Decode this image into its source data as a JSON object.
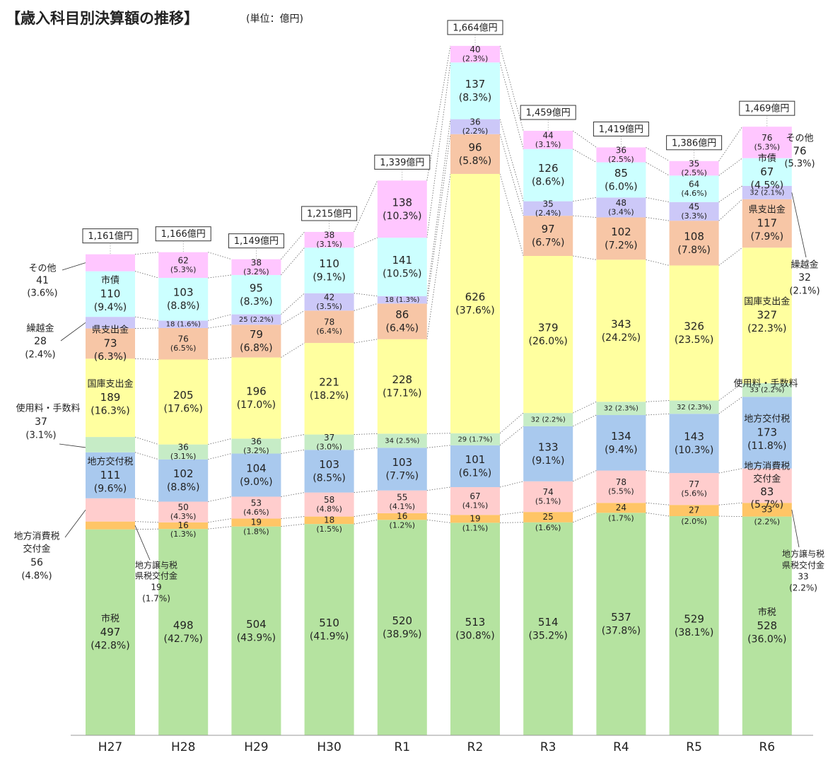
{
  "page": {
    "title": "【歳入科目別決算額の推移】",
    "unit": "(単位：億円)"
  },
  "colors": {
    "市税": "#b5e3a0",
    "地方譲与税": "#ffc566",
    "地方消費税": "#ffcdcd",
    "地方交付税": "#a9c9ee",
    "使用料": "#c6ecc6",
    "国庫支出金": "#ffff9f",
    "県支出金": "#f7c6a6",
    "繰越金": "#ccc8f8",
    "市債": "#ccffff",
    "その他": "#ffc6ff"
  },
  "chart_data": {
    "type": "bar",
    "stacked": true,
    "title": "【歳入科目別決算額の推移】",
    "unit": "(単位：億円)",
    "categories": [
      "H27",
      "H28",
      "H29",
      "H30",
      "R1",
      "R2",
      "R3",
      "R4",
      "R5",
      "R6"
    ],
    "totals": [
      1161,
      1166,
      1149,
      1215,
      1339,
      1664,
      1459,
      1419,
      1386,
      1469
    ],
    "total_labels": [
      "1,161億円",
      "1,166億円",
      "1,149億円",
      "1,215億円",
      "1,339億円",
      "1,664億円",
      "1,459億円",
      "1,419億円",
      "1,386億円",
      "1,469億円"
    ],
    "series": [
      {
        "key": "市税",
        "name": "市税",
        "values": [
          497,
          498,
          504,
          510,
          520,
          513,
          514,
          537,
          529,
          528
        ],
        "pct": [
          "(42.8%)",
          "(42.7%)",
          "(43.9%)",
          "(41.9%)",
          "(38.9%)",
          "(30.8%)",
          "(35.2%)",
          "(37.8%)",
          "(38.1%)",
          "(36.0%)"
        ]
      },
      {
        "key": "地方譲与税",
        "name": "地方譲与税・県税交付金",
        "values": [
          19,
          16,
          19,
          18,
          16,
          19,
          25,
          24,
          27,
          33
        ],
        "pct": [
          "(1.7%)",
          "(1.3%)",
          "(1.8%)",
          "(1.5%)",
          "(1.2%)",
          "(1.1%)",
          "(1.6%)",
          "(1.7%)",
          "(2.0%)",
          "(2.2%)"
        ]
      },
      {
        "key": "地方消費税",
        "name": "地方消費税交付金",
        "values": [
          56,
          50,
          53,
          58,
          55,
          67,
          74,
          78,
          77,
          83
        ],
        "pct": [
          "(4.8%)",
          "(4.3%)",
          "(4.6%)",
          "(4.8%)",
          "(4.1%)",
          "(4.1%)",
          "(5.1%)",
          "(5.5%)",
          "(5.6%)",
          "(5.7%)"
        ]
      },
      {
        "key": "地方交付税",
        "name": "地方交付税",
        "values": [
          111,
          102,
          104,
          103,
          103,
          101,
          133,
          134,
          143,
          173
        ],
        "pct": [
          "(9.6%)",
          "(8.8%)",
          "(9.0%)",
          "(8.5%)",
          "(7.7%)",
          "(6.1%)",
          "(9.1%)",
          "(9.4%)",
          "(10.3%)",
          "(11.8%)"
        ]
      },
      {
        "key": "使用料",
        "name": "使用料・手数料",
        "values": [
          37,
          36,
          36,
          37,
          34,
          29,
          32,
          32,
          32,
          33
        ],
        "pct": [
          "(3.1%)",
          "(3.1%)",
          "(3.2%)",
          "(3.0%)",
          "(2.5%)",
          "(1.7%)",
          "(2.2%)",
          "(2.3%)",
          "(2.3%)",
          "(2.2%)"
        ]
      },
      {
        "key": "国庫支出金",
        "name": "国庫支出金",
        "values": [
          189,
          205,
          196,
          221,
          228,
          626,
          379,
          343,
          326,
          327
        ],
        "pct": [
          "(16.3%)",
          "(17.6%)",
          "(17.0%)",
          "(18.2%)",
          "(17.1%)",
          "(37.6%)",
          "(26.0%)",
          "(24.2%)",
          "(23.5%)",
          "(22.3%)"
        ]
      },
      {
        "key": "県支出金",
        "name": "県支出金",
        "values": [
          73,
          76,
          79,
          78,
          86,
          96,
          97,
          102,
          108,
          117
        ],
        "pct": [
          "(6.3%)",
          "(6.5%)",
          "(6.8%)",
          "(6.4%)",
          "(6.4%)",
          "(5.8%)",
          "(6.7%)",
          "(7.2%)",
          "(7.8%)",
          "(7.9%)"
        ]
      },
      {
        "key": "繰越金",
        "name": "繰越金",
        "values": [
          28,
          18,
          25,
          42,
          18,
          36,
          35,
          48,
          45,
          32
        ],
        "pct": [
          "(2.4%)",
          "(1.6%)",
          "(2.2%)",
          "(3.5%)",
          "(1.3%)",
          "(2.2%)",
          "(2.4%)",
          "(3.4%)",
          "(3.3%)",
          "(2.1%)"
        ]
      },
      {
        "key": "市債",
        "name": "市債",
        "values": [
          110,
          103,
          95,
          110,
          141,
          137,
          126,
          85,
          64,
          67
        ],
        "pct": [
          "(9.4%)",
          "(8.8%)",
          "(8.3%)",
          "(9.1%)",
          "(10.5%)",
          "(8.3%)",
          "(8.6%)",
          "(6.0%)",
          "(4.6%)",
          "(4.5%)"
        ]
      },
      {
        "key": "その他",
        "name": "その他",
        "values": [
          41,
          62,
          38,
          38,
          138,
          40,
          44,
          36,
          35,
          76
        ],
        "pct": [
          "(3.6%)",
          "(5.3%)",
          "(3.2%)",
          "(3.1%)",
          "(10.3%)",
          "(2.3%)",
          "(3.1%)",
          "(2.5%)",
          "(2.5%)",
          "(5.3%)"
        ]
      }
    ],
    "in_bar_names": {
      "H27": {
        "市税": "市税",
        "地方交付税": "地方交付税",
        "国庫支出金": "国庫支出金",
        "県支出金": "県支出金",
        "市債": "市債"
      },
      "R6": {
        "市税": "市税",
        "市債": "市債",
        "県支出金": "県支出金",
        "国庫支出金": "国庫支出金",
        "地方交付税": "地方交付税",
        "地方消費税": "地方消費税"
      }
    },
    "callouts_left": {
      "その他": {
        "name": "その他",
        "value": "41",
        "pct": "(3.6%)"
      },
      "繰越金": {
        "name": "繰越金",
        "value": "28",
        "pct": "(2.4%)"
      },
      "使用料": {
        "name": "使用料・手数料",
        "value": "37",
        "pct": "(3.1%)"
      },
      "地方消費税": {
        "name1": "地方消費税",
        "name2": "交付金",
        "value": "56",
        "pct": "(4.8%)"
      },
      "地方譲与税": {
        "name1": "地方譲与税",
        "name2": "県税交付金",
        "value": "19",
        "pct": "(1.7%)"
      }
    },
    "r6_labels": {
      "地方消費税_line2": "交付金",
      "その他_name": "その他",
      "繰越金": {
        "name": "繰越金",
        "value": "32",
        "pct": "(2.1%)"
      },
      "使用料_name": "使用料・手数料",
      "地方譲与税": {
        "name1": "地方譲与税",
        "name2": "県税交付金",
        "value": "33",
        "pct": "(2.2%)"
      }
    }
  }
}
